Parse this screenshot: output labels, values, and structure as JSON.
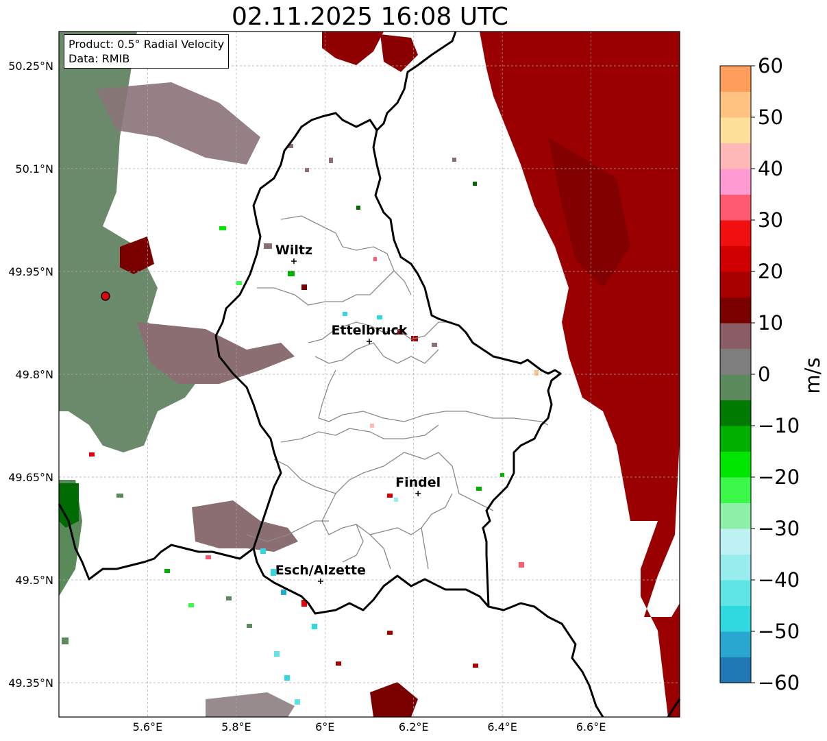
{
  "title": "02.11.2025 16:08 UTC",
  "info": {
    "product_line": "Product: 0.5° Radial Velocity",
    "data_line": "Data: RMIB"
  },
  "axes": {
    "x_ticks": [
      "5.6°E",
      "5.8°E",
      "6°E",
      "6.2°E",
      "6.4°E",
      "6.6°E"
    ],
    "y_ticks": [
      "50.25°N",
      "50.1°N",
      "49.95°N",
      "49.8°N",
      "49.65°N",
      "49.5°N",
      "49.35°N"
    ],
    "lon_values": [
      5.6,
      5.8,
      6.0,
      6.2,
      6.4,
      6.6
    ],
    "lat_values": [
      50.25,
      50.1,
      49.95,
      49.8,
      49.65,
      49.5,
      49.35
    ],
    "lon_range": [
      5.4,
      6.8
    ],
    "lat_range": [
      49.3,
      50.3
    ],
    "grid": true
  },
  "cities": [
    {
      "name": "Wiltz",
      "lon": 5.93,
      "lat": 49.965
    },
    {
      "name": "Ettelbruck",
      "lon": 6.1,
      "lat": 49.848
    },
    {
      "name": "Findel",
      "lon": 6.21,
      "lat": 49.626
    },
    {
      "name": "Esch/Alzette",
      "lon": 5.99,
      "lat": 49.498
    }
  ],
  "radar_site": {
    "lon": 5.505,
    "lat": 49.914,
    "color": "#e8000b"
  },
  "colorbar": {
    "label": "m/s",
    "range": [
      -60,
      60
    ],
    "tick_labels": [
      "60",
      "50",
      "40",
      "30",
      "20",
      "10",
      "0",
      "−10",
      "−20",
      "−30",
      "−40",
      "−50",
      "−60"
    ],
    "tick_values": [
      60,
      50,
      40,
      30,
      20,
      10,
      0,
      -10,
      -20,
      -30,
      -40,
      -50,
      -60
    ],
    "colors": [
      "#1f77b4",
      "#2aa7d0",
      "#30d8e0",
      "#5fe4e6",
      "#99ecee",
      "#bdf1f3",
      "#8cf0a8",
      "#3cf84a",
      "#00e600",
      "#00b000",
      "#007a00",
      "#5c8a5c",
      "#7e7e7e",
      "#8a5c66",
      "#7a0000",
      "#a80000",
      "#d00000",
      "#f01010",
      "#ff5a70",
      "#ff9ad2",
      "#ffb8b8",
      "#ffe09a",
      "#ffc280",
      "#ff9e5a"
    ]
  },
  "map_colors": {
    "border": "#000000",
    "admin": "#8a8a8a",
    "receding": "#9b0000",
    "approaching": "#5a8a5a",
    "near_zero": "#8a6e72"
  }
}
